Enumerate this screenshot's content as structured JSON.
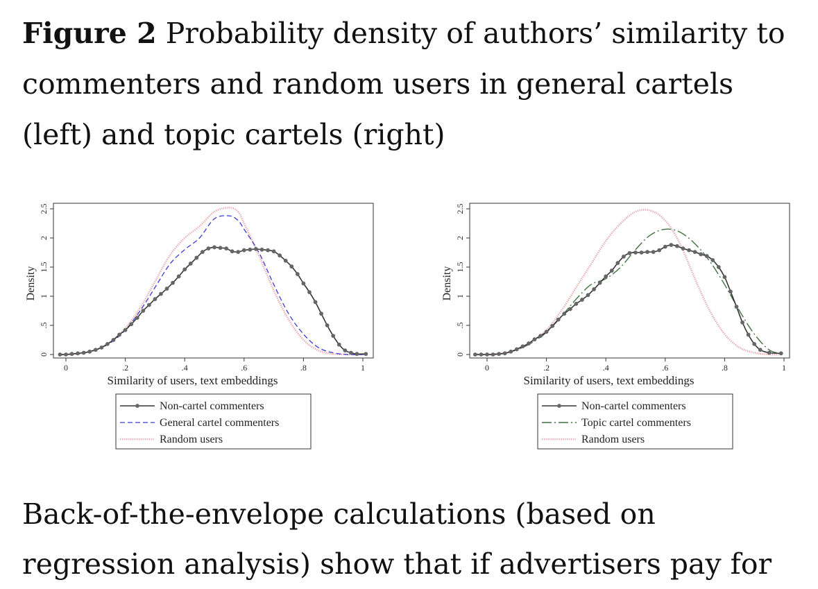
{
  "caption": {
    "label": "Figure 2",
    "text": " Probability density of authors’ similarity to commenters and random users in general cartels (left) and topic cartels (right)"
  },
  "body_text": {
    "line1": "Back-of-the-envelope calculations (based on",
    "line2": "regression analysis) show that if advertisers pay for"
  },
  "chart_data": [
    {
      "type": "line",
      "panel": "left",
      "xlabel": "Similarity of users, text embeddings",
      "ylabel": "Density",
      "xlim": [
        -0.04,
        1.03
      ],
      "ylim": [
        0,
        2.6
      ],
      "xticks": [
        0,
        0.2,
        0.4,
        0.6,
        0.8,
        1
      ],
      "xtick_labels": [
        "0",
        ".2",
        ".4",
        ".6",
        ".8",
        "1"
      ],
      "yticks": [
        0,
        0.5,
        1,
        1.5,
        2,
        2.5
      ],
      "ytick_labels": [
        "0",
        ".5",
        "1",
        "1.5",
        "2",
        "2.5"
      ],
      "grid": false,
      "legend_position": "bottom",
      "series": [
        {
          "name": "Non-cartel commenters",
          "style": "solid-markers",
          "color": "#333333",
          "x": [
            -0.02,
            0,
            0.02,
            0.04,
            0.06,
            0.08,
            0.1,
            0.12,
            0.14,
            0.16,
            0.18,
            0.2,
            0.22,
            0.24,
            0.26,
            0.28,
            0.3,
            0.32,
            0.34,
            0.36,
            0.38,
            0.4,
            0.42,
            0.44,
            0.46,
            0.48,
            0.5,
            0.52,
            0.54,
            0.56,
            0.58,
            0.6,
            0.62,
            0.64,
            0.66,
            0.68,
            0.7,
            0.72,
            0.74,
            0.76,
            0.78,
            0.8,
            0.82,
            0.84,
            0.86,
            0.88,
            0.9,
            0.92,
            0.94,
            0.96,
            0.98,
            1.01
          ],
          "y": [
            0,
            0,
            0.01,
            0.02,
            0.03,
            0.05,
            0.08,
            0.12,
            0.18,
            0.25,
            0.34,
            0.42,
            0.52,
            0.63,
            0.75,
            0.85,
            0.95,
            1.04,
            1.13,
            1.23,
            1.34,
            1.46,
            1.56,
            1.66,
            1.76,
            1.82,
            1.84,
            1.83,
            1.82,
            1.77,
            1.76,
            1.79,
            1.8,
            1.81,
            1.8,
            1.79,
            1.77,
            1.7,
            1.61,
            1.51,
            1.38,
            1.22,
            1.07,
            0.9,
            0.7,
            0.5,
            0.32,
            0.17,
            0.07,
            0.03,
            0.01,
            0.01
          ]
        },
        {
          "name": "General cartel commenters",
          "style": "dashed",
          "color": "#3a3ad0",
          "x": [
            -0.02,
            0,
            0.05,
            0.1,
            0.15,
            0.2,
            0.25,
            0.3,
            0.35,
            0.4,
            0.45,
            0.5,
            0.55,
            0.58,
            0.6,
            0.65,
            0.7,
            0.75,
            0.8,
            0.85,
            0.9,
            0.95,
            1.01
          ],
          "y": [
            0,
            0,
            0.02,
            0.08,
            0.2,
            0.42,
            0.75,
            1.15,
            1.55,
            1.8,
            2.0,
            2.33,
            2.38,
            2.3,
            2.15,
            1.75,
            1.2,
            0.7,
            0.35,
            0.12,
            0.03,
            0,
            0
          ]
        },
        {
          "name": "Random users",
          "style": "dotted",
          "color": "#e8a0a8",
          "x": [
            -0.02,
            0,
            0.05,
            0.1,
            0.15,
            0.2,
            0.25,
            0.3,
            0.35,
            0.4,
            0.45,
            0.5,
            0.55,
            0.58,
            0.6,
            0.65,
            0.7,
            0.75,
            0.8,
            0.85,
            0.9,
            0.95,
            1.0
          ],
          "y": [
            0,
            0,
            0.02,
            0.08,
            0.22,
            0.45,
            0.8,
            1.25,
            1.7,
            2.0,
            2.2,
            2.45,
            2.52,
            2.45,
            2.25,
            1.7,
            1.1,
            0.6,
            0.25,
            0.07,
            0.01,
            0,
            0
          ]
        }
      ]
    },
    {
      "type": "line",
      "panel": "right",
      "xlabel": "Similarity of users, text embeddings",
      "ylabel": "Density",
      "xlim": [
        -0.06,
        1.02
      ],
      "ylim": [
        0,
        2.6
      ],
      "xticks": [
        0,
        0.2,
        0.4,
        0.6,
        0.8,
        1
      ],
      "xtick_labels": [
        "0",
        ".2",
        ".4",
        ".6",
        ".8",
        "1"
      ],
      "yticks": [
        0,
        0.5,
        1,
        1.5,
        2,
        2.5
      ],
      "ytick_labels": [
        "0",
        ".5",
        "1",
        "1.5",
        "2",
        "2.5"
      ],
      "grid": false,
      "legend_position": "bottom",
      "series": [
        {
          "name": "Non-cartel commenters",
          "style": "solid-markers",
          "color": "#333333",
          "x": [
            -0.04,
            -0.02,
            0,
            0.02,
            0.04,
            0.06,
            0.08,
            0.1,
            0.12,
            0.14,
            0.16,
            0.18,
            0.2,
            0.22,
            0.24,
            0.26,
            0.28,
            0.3,
            0.32,
            0.34,
            0.36,
            0.38,
            0.4,
            0.42,
            0.44,
            0.46,
            0.48,
            0.5,
            0.52,
            0.54,
            0.56,
            0.58,
            0.6,
            0.62,
            0.64,
            0.66,
            0.68,
            0.7,
            0.72,
            0.74,
            0.76,
            0.78,
            0.8,
            0.82,
            0.84,
            0.86,
            0.88,
            0.9,
            0.92,
            0.95,
            0.99
          ],
          "y": [
            0,
            0,
            0,
            0,
            0.01,
            0.02,
            0.05,
            0.09,
            0.14,
            0.19,
            0.26,
            0.32,
            0.39,
            0.49,
            0.6,
            0.7,
            0.78,
            0.87,
            0.94,
            1.02,
            1.12,
            1.23,
            1.34,
            1.44,
            1.57,
            1.68,
            1.74,
            1.75,
            1.75,
            1.76,
            1.76,
            1.79,
            1.85,
            1.88,
            1.86,
            1.82,
            1.79,
            1.76,
            1.72,
            1.69,
            1.62,
            1.5,
            1.33,
            1.08,
            0.82,
            0.55,
            0.34,
            0.18,
            0.08,
            0.03,
            0.02
          ]
        },
        {
          "name": "Topic cartel commenters",
          "style": "dashdot",
          "color": "#3f6f3f",
          "x": [
            -0.04,
            0,
            0.05,
            0.1,
            0.15,
            0.2,
            0.25,
            0.3,
            0.35,
            0.4,
            0.45,
            0.5,
            0.55,
            0.6,
            0.65,
            0.7,
            0.75,
            0.8,
            0.85,
            0.9,
            0.95,
            0.99
          ],
          "y": [
            0,
            0,
            0.02,
            0.08,
            0.2,
            0.38,
            0.65,
            0.95,
            1.2,
            1.3,
            1.5,
            1.8,
            2.05,
            2.15,
            2.1,
            1.9,
            1.6,
            1.2,
            0.75,
            0.35,
            0.08,
            0.02
          ]
        },
        {
          "name": "Random users",
          "style": "dotted",
          "color": "#e8a0a8",
          "x": [
            -0.04,
            0,
            0.05,
            0.1,
            0.15,
            0.2,
            0.25,
            0.3,
            0.35,
            0.4,
            0.45,
            0.5,
            0.55,
            0.6,
            0.65,
            0.7,
            0.75,
            0.8,
            0.85,
            0.9,
            0.95,
            0.99
          ],
          "y": [
            0,
            0,
            0.02,
            0.08,
            0.22,
            0.42,
            0.75,
            1.15,
            1.55,
            1.95,
            2.25,
            2.45,
            2.47,
            2.3,
            1.9,
            1.3,
            0.75,
            0.35,
            0.12,
            0.03,
            0,
            0
          ]
        }
      ]
    }
  ]
}
